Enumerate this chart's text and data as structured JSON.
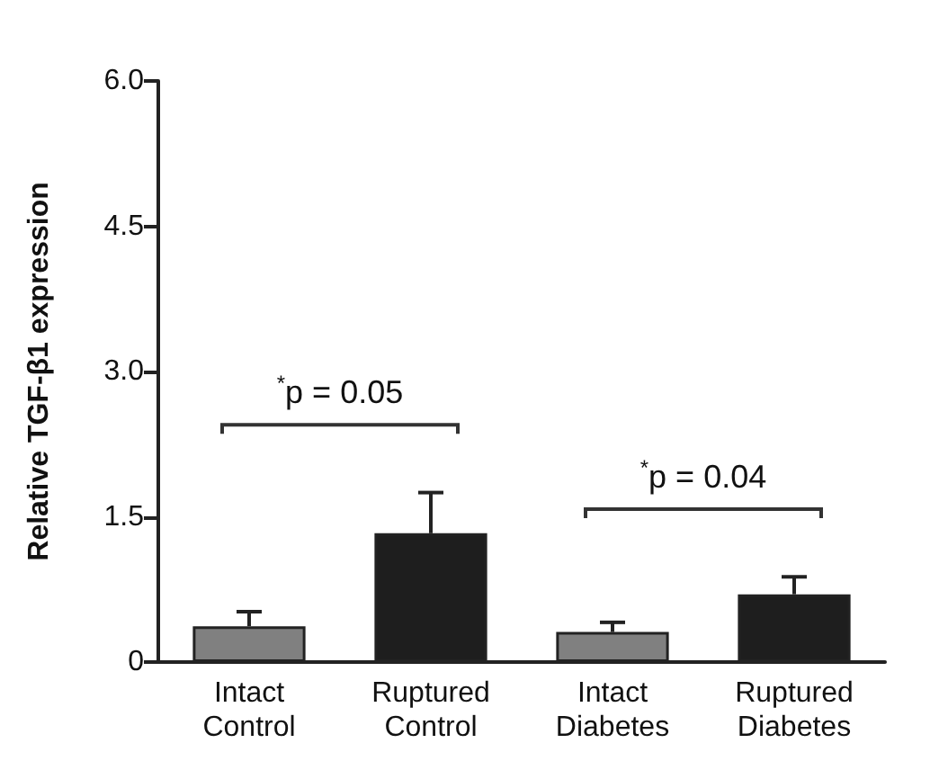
{
  "chart_data": {
    "type": "bar",
    "ylabel": "Relative TGF-β1 expression",
    "categories": [
      "Intact\nControl",
      "Ruptured\nControl",
      "Intact\nDiabetes",
      "Ruptured\nDiabetes"
    ],
    "values": [
      0.37,
      1.33,
      0.31,
      0.7
    ],
    "colors": [
      "#808080",
      "#1e1e1e",
      "#808080",
      "#1e1e1e"
    ],
    "errors": [
      [
        0.37,
        0.52
      ],
      [
        1.33,
        1.75
      ],
      [
        0.31,
        0.41
      ],
      [
        0.7,
        0.88
      ]
    ],
    "ylim": [
      0,
      6
    ],
    "yticks": [
      0,
      1.5,
      {
        "value": 3,
        "label": "3.0"
      },
      4.5,
      {
        "value": 6,
        "label": "6.0"
      }
    ],
    "annotations": [
      "$^{*}$p = 0.05",
      "$^{*}$p = 0.04"
    ]
  }
}
